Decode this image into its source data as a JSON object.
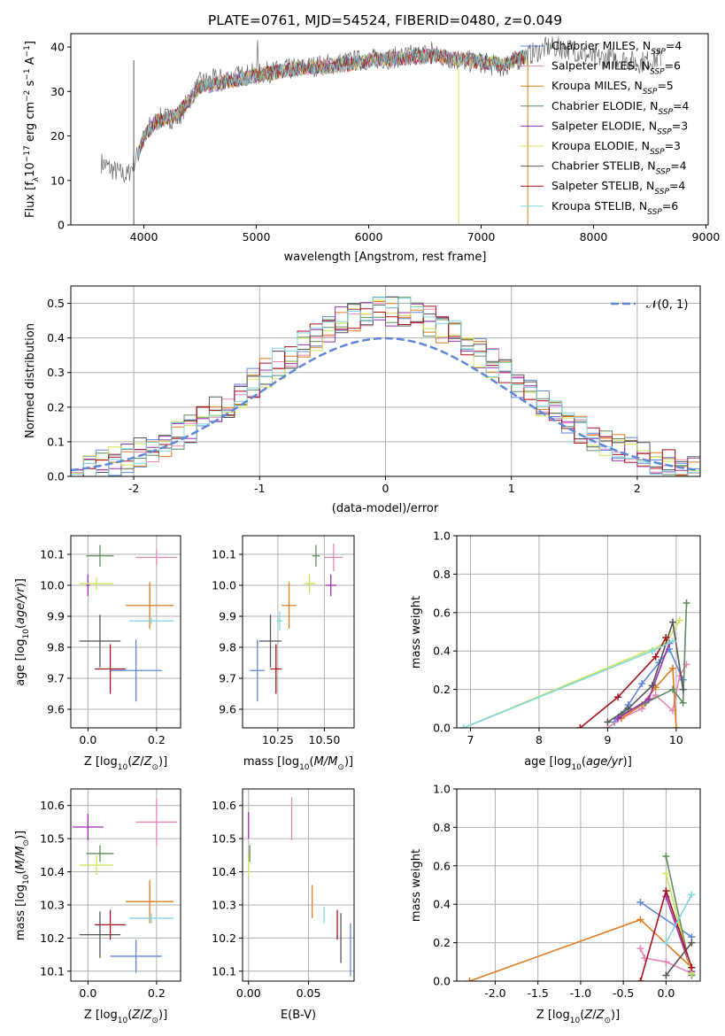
{
  "title": "PLATE=0761, MJD=54524, FIBERID=0480, z=0.049",
  "colors": {
    "Chabrier MILES": "#5f87d8",
    "Salpeter MILES": "#e687b4",
    "Kroupa MILES": "#e07b20",
    "Chabrier ELODIE": "#5f8c5f",
    "Salpeter ELODIE": "#9b2fb0",
    "Kroupa ELODIE": "#cfe35a",
    "Chabrier STELIB": "#555555",
    "Salpeter STELIB": "#a5121c",
    "Kroupa STELIB": "#7fd6dd",
    "normal_curve": "#5f87d8",
    "grid": "#b0b0b0"
  },
  "chart_data": [
    {
      "id": "spectrum",
      "type": "line",
      "xlabel": "wavelength [Angstrom, rest frame]",
      "ylabel": "Flux [f",
      "xlim": [
        3350,
        9020
      ],
      "ylim": [
        0,
        43
      ],
      "xticks": [
        4000,
        5000,
        6000,
        7000,
        8000,
        9000
      ],
      "yticks": [
        0,
        10,
        20,
        30,
        40
      ],
      "grid": false,
      "legend_position": "upper right",
      "legend": [
        {
          "name": "Chabrier MILES",
          "nssp": 4
        },
        {
          "name": "Salpeter MILES",
          "nssp": 6
        },
        {
          "name": "Kroupa MILES",
          "nssp": 5
        },
        {
          "name": "Chabrier ELODIE",
          "nssp": 4
        },
        {
          "name": "Salpeter ELODIE",
          "nssp": 3
        },
        {
          "name": "Kroupa ELODIE",
          "nssp": 3
        },
        {
          "name": "Chabrier STELIB",
          "nssp": 4
        },
        {
          "name": "Salpeter STELIB",
          "nssp": 4
        },
        {
          "name": "Kroupa STELIB",
          "nssp": 6
        }
      ],
      "continuum_x": [
        3620,
        3750,
        3850,
        3950,
        4050,
        4150,
        4300,
        4500,
        4700,
        5000,
        5300,
        5600,
        5900,
        6200,
        6500,
        6800,
        7000,
        7200,
        7400,
        7600,
        7800,
        8000,
        8200,
        8400,
        8600
      ],
      "continuum_y": [
        14,
        12,
        11,
        16,
        22,
        24,
        24,
        32,
        33,
        34,
        35,
        36,
        37,
        37.5,
        38.5,
        37,
        36.5,
        35.5,
        38,
        40,
        39.5,
        37.5,
        37.5,
        36.5,
        37.5
      ],
      "model_x": [
        3950,
        4000,
        4100,
        4300,
        4500,
        4800,
        5000,
        5200,
        5500,
        5800,
        6000,
        6300,
        6600,
        6900,
        7200,
        7400
      ],
      "model_y": [
        16,
        20,
        23,
        25,
        31,
        32.5,
        33.5,
        34.5,
        35.5,
        36,
        37,
        37.5,
        38,
        37,
        36,
        38
      ]
    },
    {
      "id": "residuals",
      "type": "line",
      "xlabel": "(data-model)/error",
      "ylabel": "Normed distribution",
      "xlim": [
        -2.5,
        2.5
      ],
      "ylim": [
        0,
        0.55
      ],
      "xticks": [
        -2,
        -1,
        0,
        1,
        2
      ],
      "yticks": [
        0.0,
        0.1,
        0.2,
        0.3,
        0.4,
        0.5
      ],
      "grid": true,
      "legend": [
        "𝒩(0, 1)"
      ],
      "legend_position": "upper right",
      "normal_curve": {
        "mean": 0,
        "sigma": 1
      },
      "hist_bin_width": 0.1
    },
    {
      "id": "age_vs_Z",
      "type": "scatter",
      "xlabel": "Z [log",
      "ylabel": "age  [log",
      "xlim": [
        -0.05,
        0.27
      ],
      "ylim": [
        9.54,
        10.16
      ],
      "xticks": [
        0.0,
        0.2
      ],
      "yticks": [
        9.6,
        9.7,
        9.8,
        9.9,
        10.0,
        10.1
      ],
      "grid": true,
      "points": [
        {
          "series": "Chabrier MILES",
          "x": 0.14,
          "y": 9.725,
          "xerr": 0.075,
          "yerr": 0.1
        },
        {
          "series": "Salpeter MILES",
          "x": 0.2,
          "y": 10.09,
          "xerr": 0.06,
          "yerr": 0.025
        },
        {
          "series": "Kroupa MILES",
          "x": 0.18,
          "y": 9.935,
          "xerr": 0.07,
          "yerr": 0.075
        },
        {
          "series": "Chabrier ELODIE",
          "x": 0.035,
          "y": 10.095,
          "xerr": 0.04,
          "yerr": 0.035
        },
        {
          "series": "Salpeter ELODIE",
          "x": 0.0,
          "y": 10.0,
          "xerr": 0.005,
          "yerr": 0.035
        },
        {
          "series": "Kroupa ELODIE",
          "x": 0.025,
          "y": 10.005,
          "xerr": 0.05,
          "yerr": 0.02
        },
        {
          "series": "Chabrier STELIB",
          "x": 0.035,
          "y": 9.82,
          "xerr": 0.06,
          "yerr": 0.085
        },
        {
          "series": "Salpeter STELIB",
          "x": 0.065,
          "y": 9.73,
          "xerr": 0.045,
          "yerr": 0.08
        },
        {
          "series": "Kroupa STELIB",
          "x": 0.185,
          "y": 9.885,
          "xerr": 0.065,
          "yerr": 0.01
        }
      ]
    },
    {
      "id": "age_vs_mass",
      "type": "scatter",
      "xlabel": "mass [log",
      "ylabel": "",
      "xlim": [
        10.06,
        10.66
      ],
      "ylim": [
        9.54,
        10.16
      ],
      "xticks": [
        10.25,
        10.5
      ],
      "yticks": [
        9.6,
        9.7,
        9.8,
        9.9,
        10.0,
        10.1
      ],
      "grid": true,
      "points": [
        {
          "series": "Chabrier MILES",
          "x": 10.14,
          "y": 9.725,
          "xerr": 0.04,
          "yerr": 0.1
        },
        {
          "series": "Salpeter MILES",
          "x": 10.55,
          "y": 10.09,
          "xerr": 0.05,
          "yerr": 0.045
        },
        {
          "series": "Kroupa MILES",
          "x": 10.31,
          "y": 9.935,
          "xerr": 0.04,
          "yerr": 0.075
        },
        {
          "series": "Chabrier ELODIE",
          "x": 10.455,
          "y": 10.095,
          "xerr": 0.02,
          "yerr": 0.035
        },
        {
          "series": "Salpeter ELODIE",
          "x": 10.535,
          "y": 10.0,
          "xerr": 0.03,
          "yerr": 0.035
        },
        {
          "series": "Kroupa ELODIE",
          "x": 10.42,
          "y": 10.005,
          "xerr": 0.03,
          "yerr": 0.03
        },
        {
          "series": "Chabrier STELIB",
          "x": 10.21,
          "y": 9.82,
          "xerr": 0.06,
          "yerr": 0.085
        },
        {
          "series": "Salpeter STELIB",
          "x": 10.24,
          "y": 9.73,
          "xerr": 0.03,
          "yerr": 0.08
        },
        {
          "series": "Kroupa STELIB",
          "x": 10.26,
          "y": 9.885,
          "xerr": 0.015,
          "yerr": 0.03
        }
      ]
    },
    {
      "id": "massweight_vs_age",
      "type": "line",
      "xlabel": "age  [log",
      "ylabel": "mass weight",
      "xlim": [
        6.8,
        10.35
      ],
      "ylim": [
        0,
        1.0
      ],
      "xticks": [
        7,
        8,
        9,
        10
      ],
      "yticks": [
        0.0,
        0.2,
        0.4,
        0.6,
        0.8,
        1.0
      ],
      "grid": true,
      "series": [
        {
          "name": "Chabrier MILES",
          "x": [
            9.1,
            9.3,
            9.5,
            9.75,
            9.9,
            10.1
          ],
          "y": [
            0.03,
            0.12,
            0.23,
            0.34,
            0.41,
            0.25
          ]
        },
        {
          "name": "Salpeter MILES",
          "x": [
            9.0,
            9.2,
            9.5,
            9.7,
            9.95,
            10.05,
            10.15
          ],
          "y": [
            0.0,
            0.05,
            0.1,
            0.17,
            0.09,
            0.27,
            0.33
          ]
        },
        {
          "name": "Kroupa MILES",
          "x": [
            9.2,
            9.5,
            9.7,
            9.95,
            10.0
          ],
          "y": [
            0.05,
            0.12,
            0.21,
            0.31,
            0.0
          ]
        },
        {
          "name": "Chabrier ELODIE",
          "x": [
            9.2,
            9.55,
            9.95,
            10.1,
            10.15
          ],
          "y": [
            0.07,
            0.13,
            0.2,
            0.13,
            0.65
          ]
        },
        {
          "name": "Salpeter ELODIE",
          "x": [
            9.15,
            9.6,
            9.9
          ],
          "y": [
            0.05,
            0.15,
            0.44
          ]
        },
        {
          "name": "Kroupa ELODIE",
          "x": [
            6.9,
            9.85,
            10.05
          ],
          "y": [
            0.0,
            0.44,
            0.56
          ]
        },
        {
          "name": "Chabrier STELIB",
          "x": [
            9.0,
            9.3,
            9.65,
            9.95,
            10.1
          ],
          "y": [
            0.03,
            0.1,
            0.22,
            0.55,
            0.2
          ]
        },
        {
          "name": "Salpeter STELIB",
          "x": [
            8.6,
            9.15,
            9.7,
            9.85
          ],
          "y": [
            0.0,
            0.16,
            0.37,
            0.47
          ]
        },
        {
          "name": "Kroupa STELIB",
          "x": [
            6.9,
            9.65,
            9.95
          ],
          "y": [
            0.0,
            0.4,
            0.45
          ]
        }
      ]
    },
    {
      "id": "mass_vs_Z",
      "type": "scatter",
      "xlabel": "Z [log",
      "ylabel": "mass [log",
      "xlim": [
        -0.05,
        0.27
      ],
      "ylim": [
        10.07,
        10.65
      ],
      "xticks": [
        0.0,
        0.2
      ],
      "yticks": [
        10.1,
        10.2,
        10.3,
        10.4,
        10.5,
        10.6
      ],
      "grid": true,
      "points": [
        {
          "series": "Chabrier MILES",
          "x": 0.14,
          "y": 10.145,
          "xerr": 0.075,
          "yerr": 0.05
        },
        {
          "series": "Salpeter MILES",
          "x": 0.2,
          "y": 10.55,
          "xerr": 0.06,
          "yerr": 0.07
        },
        {
          "series": "Kroupa MILES",
          "x": 0.18,
          "y": 10.31,
          "xerr": 0.07,
          "yerr": 0.065
        },
        {
          "series": "Chabrier ELODIE",
          "x": 0.035,
          "y": 10.455,
          "xerr": 0.04,
          "yerr": 0.025
        },
        {
          "series": "Salpeter ELODIE",
          "x": 0.0,
          "y": 10.535,
          "xerr": 0.045,
          "yerr": 0.04
        },
        {
          "series": "Kroupa ELODIE",
          "x": 0.025,
          "y": 10.42,
          "xerr": 0.05,
          "yerr": 0.03
        },
        {
          "series": "Chabrier STELIB",
          "x": 0.035,
          "y": 10.21,
          "xerr": 0.06,
          "yerr": 0.07
        },
        {
          "series": "Salpeter STELIB",
          "x": 0.065,
          "y": 10.24,
          "xerr": 0.045,
          "yerr": 0.045
        },
        {
          "series": "Kroupa STELIB",
          "x": 0.185,
          "y": 10.26,
          "xerr": 0.065,
          "yerr": 0.015
        }
      ]
    },
    {
      "id": "mass_vs_EBV",
      "type": "scatter",
      "xlabel": "E(B-V)",
      "ylabel": "",
      "xlim": [
        -0.005,
        0.088
      ],
      "ylim": [
        10.07,
        10.65
      ],
      "xticks": [
        0.0,
        0.05
      ],
      "yticks": [
        10.1,
        10.2,
        10.3,
        10.4,
        10.5,
        10.6
      ],
      "grid": true,
      "points": [
        {
          "series": "Chabrier MILES",
          "x": 0.085,
          "y": 10.165,
          "xerr": 0.0,
          "yerr": 0.08
        },
        {
          "series": "Salpeter MILES",
          "x": 0.036,
          "y": 10.56,
          "xerr": 0.0,
          "yerr": 0.065
        },
        {
          "series": "Kroupa MILES",
          "x": 0.053,
          "y": 10.31,
          "xerr": 0.0,
          "yerr": 0.05
        },
        {
          "series": "Chabrier ELODIE",
          "x": 0.001,
          "y": 10.455,
          "xerr": 0.0,
          "yerr": 0.025
        },
        {
          "series": "Salpeter ELODIE",
          "x": 0.0,
          "y": 10.54,
          "xerr": 0.0,
          "yerr": 0.04
        },
        {
          "series": "Kroupa ELODIE",
          "x": 0.0,
          "y": 10.42,
          "xerr": 0.0,
          "yerr": 0.035
        },
        {
          "series": "Chabrier STELIB",
          "x": 0.077,
          "y": 10.2,
          "xerr": 0.0,
          "yerr": 0.075
        },
        {
          "series": "Salpeter STELIB",
          "x": 0.074,
          "y": 10.24,
          "xerr": 0.0,
          "yerr": 0.045
        },
        {
          "series": "Kroupa STELIB",
          "x": 0.063,
          "y": 10.27,
          "xerr": 0.0,
          "yerr": 0.025
        }
      ]
    },
    {
      "id": "massweight_vs_Z",
      "type": "line",
      "xlabel": "Z [log",
      "ylabel": "mass weight",
      "xlim": [
        -2.45,
        0.4
      ],
      "ylim": [
        0,
        1.0
      ],
      "xticks": [
        -2.0,
        -1.5,
        -1.0,
        -0.5,
        0.0
      ],
      "yticks": [
        0.0,
        0.2,
        0.4,
        0.6,
        0.8,
        1.0
      ],
      "grid": true,
      "series": [
        {
          "name": "Chabrier MILES",
          "x": [
            -0.3,
            0.3
          ],
          "y": [
            0.41,
            0.23
          ]
        },
        {
          "name": "Salpeter MILES",
          "x": [
            -0.3,
            -0.25,
            0.0,
            0.3
          ],
          "y": [
            0.17,
            0.12,
            0.1,
            0.04
          ]
        },
        {
          "name": "Kroupa MILES",
          "x": [
            -2.3,
            -0.3,
            0.3
          ],
          "y": [
            0.0,
            0.32,
            0.07
          ]
        },
        {
          "name": "Chabrier ELODIE",
          "x": [
            0.0,
            0.3
          ],
          "y": [
            0.65,
            0.03
          ]
        },
        {
          "name": "Salpeter ELODIE",
          "x": [
            0.0,
            0.3
          ],
          "y": [
            0.44,
            0.05
          ]
        },
        {
          "name": "Kroupa ELODIE",
          "x": [
            0.0,
            0.3
          ],
          "y": [
            0.56,
            0.04
          ]
        },
        {
          "name": "Chabrier STELIB",
          "x": [
            0.0,
            0.3
          ],
          "y": [
            0.03,
            0.2
          ]
        },
        {
          "name": "Salpeter STELIB",
          "x": [
            -0.3,
            0.0,
            0.3
          ],
          "y": [
            0.0,
            0.47,
            0.07
          ]
        },
        {
          "name": "Kroupa STELIB",
          "x": [
            0.0,
            0.3
          ],
          "y": [
            0.2,
            0.45
          ]
        }
      ]
    }
  ]
}
